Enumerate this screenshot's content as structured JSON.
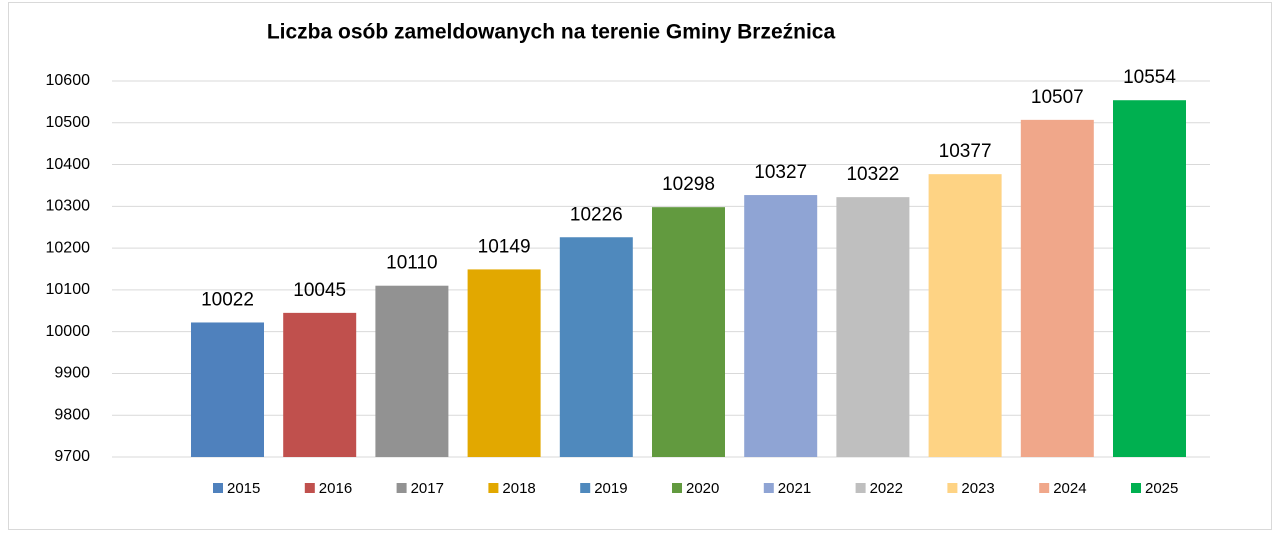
{
  "chart_data": {
    "type": "bar",
    "title": "Liczba osób zameldowanych na terenie Gminy Brzeźnica",
    "series": [
      {
        "name": "2015",
        "color": "#4f81bd",
        "values": [
          10022
        ]
      },
      {
        "name": "2016",
        "color": "#c0504d",
        "values": [
          10045
        ]
      },
      {
        "name": "2017",
        "color": "#929292",
        "values": [
          10110
        ]
      },
      {
        "name": "2018",
        "color": "#e2a800",
        "values": [
          10149
        ]
      },
      {
        "name": "2019",
        "color": "#4f89bd",
        "values": [
          10226
        ]
      },
      {
        "name": "2020",
        "color": "#629a3f",
        "values": [
          10298
        ]
      },
      {
        "name": "2021",
        "color": "#8fa4d4",
        "values": [
          10327
        ]
      },
      {
        "name": "2022",
        "color": "#bfbfbf",
        "values": [
          10322
        ]
      },
      {
        "name": "2023",
        "color": "#fed384",
        "values": [
          10377
        ]
      },
      {
        "name": "2024",
        "color": "#f0a78a",
        "values": [
          10507
        ]
      },
      {
        "name": "2025",
        "color": "#00b050",
        "values": [
          10554
        ]
      }
    ],
    "ylim": [
      9700,
      10600
    ],
    "yticks": [
      9700,
      9800,
      9900,
      10000,
      10100,
      10200,
      10300,
      10400,
      10500,
      10600
    ],
    "grid": true,
    "legend": "bottom"
  }
}
